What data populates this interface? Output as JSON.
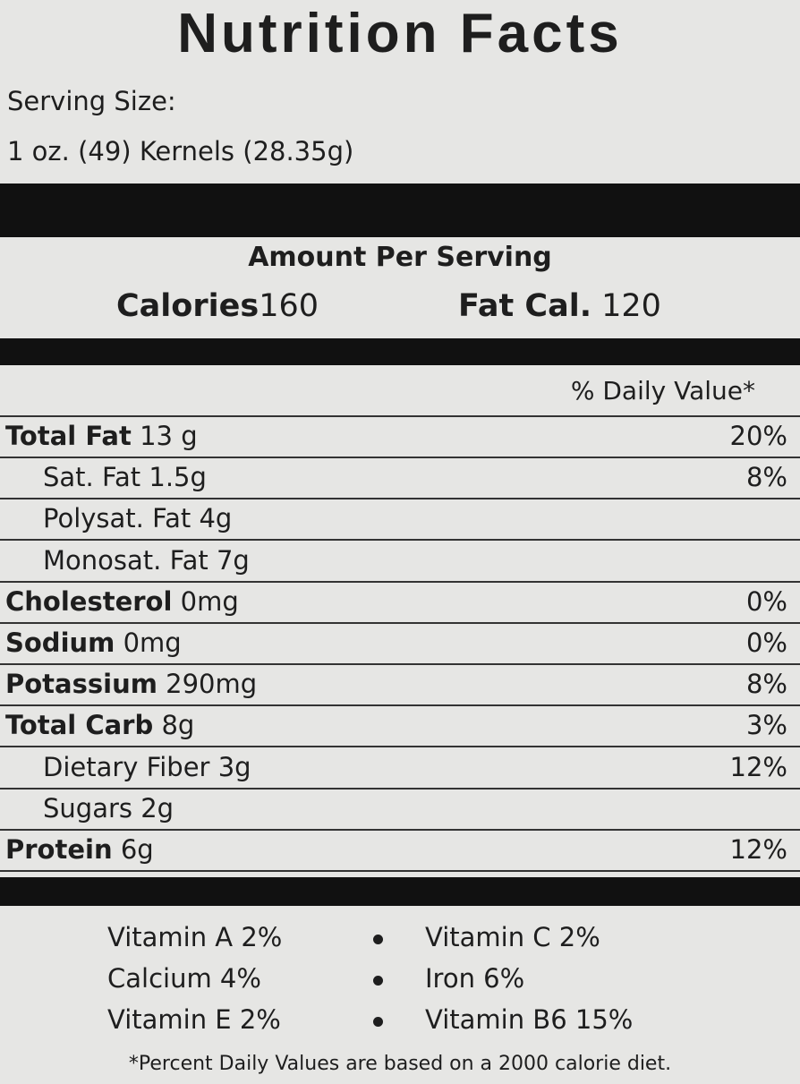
{
  "title": "Nutrition Facts",
  "serving_size_label": "Serving Size:",
  "serving_size": "1 oz. (49) Kernels (28.35g)",
  "amount_per_serving": "Amount Per Serving",
  "calories": {
    "label": "Calories",
    "value": "160"
  },
  "fat_calories": {
    "label": "Fat Cal.",
    "value": "120"
  },
  "daily_value_header": "% Daily Value*",
  "rows": [
    {
      "name": "Total Fat",
      "amount": "13 g",
      "dv": "20%",
      "indent": false
    },
    {
      "name": "Sat. Fat",
      "amount": "1.5g",
      "dv": "8%",
      "indent": true
    },
    {
      "name": "Polysat. Fat",
      "amount": "4g",
      "indent": true
    },
    {
      "name": "Monosat. Fat",
      "amount": "7g",
      "indent": true
    },
    {
      "name": "Cholesterol",
      "amount": "0mg",
      "dv": "0%",
      "indent": false
    },
    {
      "name": "Sodium",
      "amount": "0mg",
      "dv": "0%",
      "indent": false
    },
    {
      "name": "Potassium",
      "amount": "290mg",
      "dv": "8%",
      "indent": false
    },
    {
      "name": "Total Carb",
      "amount": "8g",
      "dv": "3%",
      "indent": false
    },
    {
      "name": "Dietary Fiber",
      "amount": "3g",
      "dv": "12%",
      "indent": true
    },
    {
      "name": "Sugars",
      "amount": "2g",
      "indent": true
    },
    {
      "name": "Protein",
      "amount": "6g",
      "dv": "12%",
      "indent": false
    }
  ],
  "vitamins": [
    [
      "Vitamin A 2%",
      "Vitamin C 2%"
    ],
    [
      "Calcium 4%",
      "Iron 6%"
    ],
    [
      "Vitamin E 2%",
      "Vitamin B6 15%"
    ]
  ],
  "footnote": "*Percent Daily Values are based on a 2000 calorie diet."
}
